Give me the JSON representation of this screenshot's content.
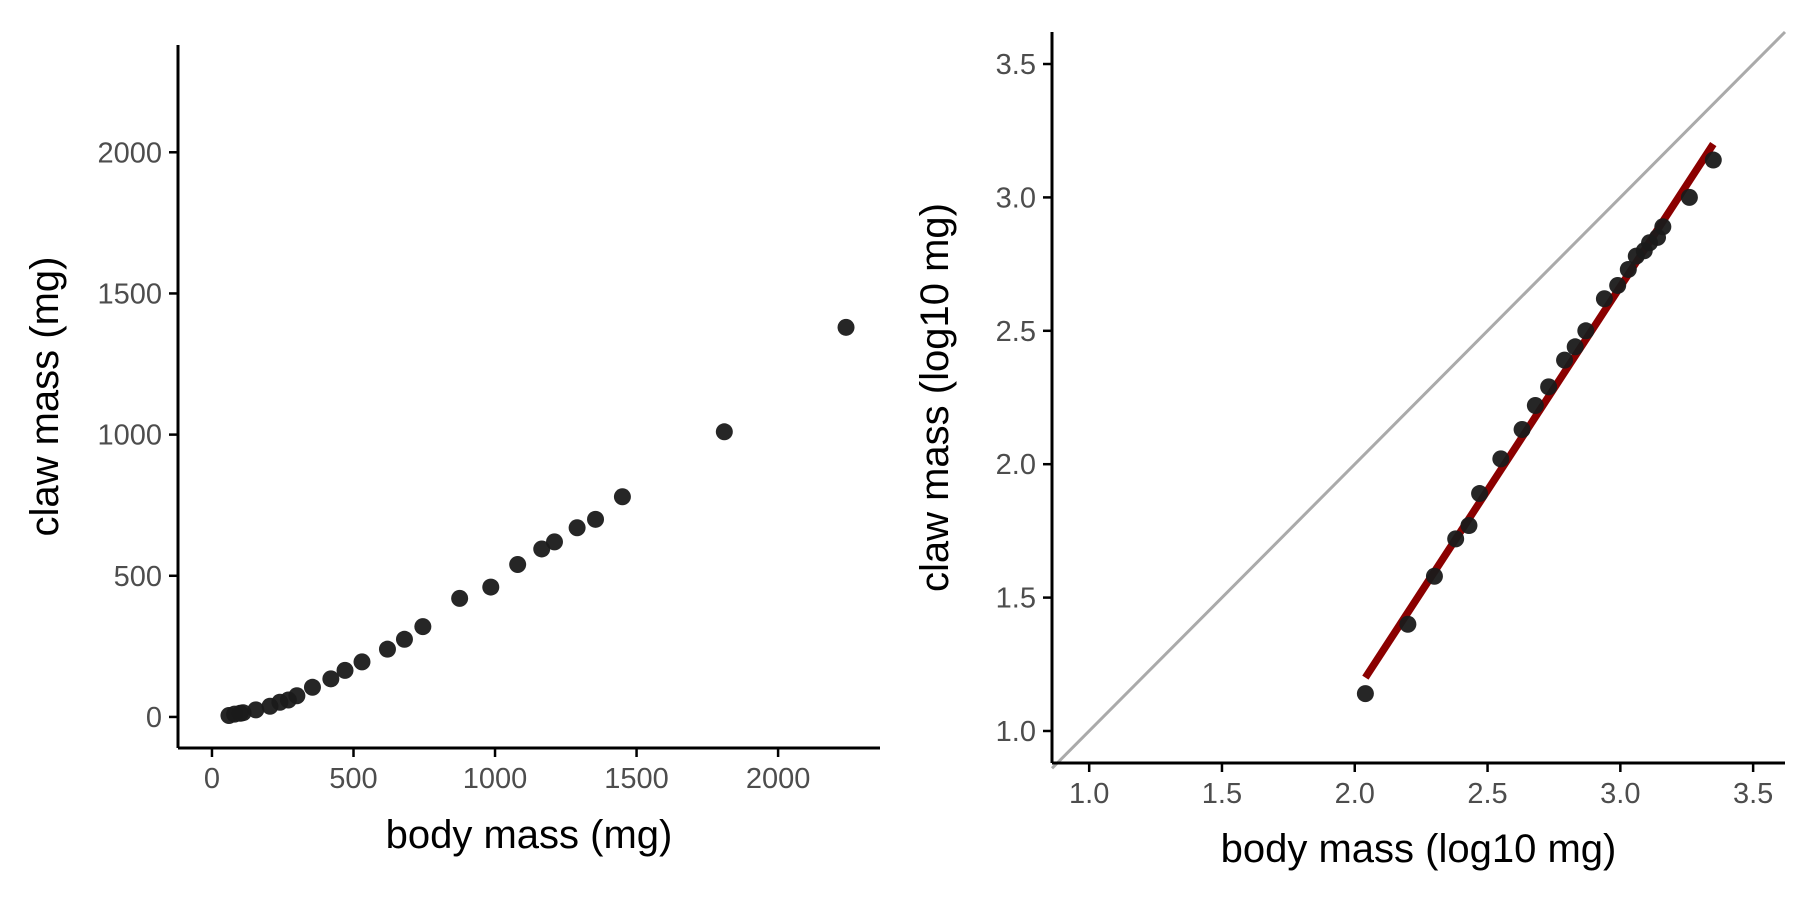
{
  "chart_data": [
    {
      "type": "scatter",
      "title": "",
      "xlabel": "body mass (mg)",
      "ylabel": "claw mass (mg)",
      "xlim": [
        -120,
        2360
      ],
      "ylim": [
        -110,
        2380
      ],
      "xticks": [
        0,
        500,
        1000,
        1500,
        2000
      ],
      "xtick_labels": [
        "0",
        "500",
        "1000",
        "1500",
        "2000"
      ],
      "yticks": [
        0,
        500,
        1000,
        1500,
        2000
      ],
      "ytick_labels": [
        "0",
        "500",
        "1000",
        "1500",
        "2000"
      ],
      "grid": false,
      "legend": "none",
      "colors": {
        "point": "#1a1a1a",
        "axis": "#000000"
      },
      "x": [
        60,
        80,
        100,
        110,
        155,
        205,
        240,
        270,
        300,
        355,
        420,
        470,
        530,
        620,
        680,
        745,
        875,
        985,
        1080,
        1165,
        1210,
        1290,
        1355,
        1450,
        1810,
        2240
      ],
      "y": [
        5,
        10,
        13,
        15,
        25,
        38,
        52,
        60,
        75,
        105,
        135,
        165,
        195,
        240,
        275,
        320,
        420,
        460,
        540,
        595,
        620,
        670,
        700,
        780,
        1010,
        1380
      ]
    },
    {
      "type": "scatter",
      "title": "",
      "xlabel": "body mass (log10 mg)",
      "ylabel": "claw mass (log10 mg)",
      "xlim": [
        0.86,
        3.62
      ],
      "ylim": [
        0.88,
        3.62
      ],
      "xticks": [
        1.0,
        1.5,
        2.0,
        2.5,
        3.0,
        3.5
      ],
      "xtick_labels": [
        "1.0",
        "1.5",
        "2.0",
        "2.5",
        "3.0",
        "3.5"
      ],
      "yticks": [
        1.0,
        1.5,
        2.0,
        2.5,
        3.0,
        3.5
      ],
      "ytick_labels": [
        "1.0",
        "1.5",
        "2.0",
        "2.5",
        "3.0",
        "3.5"
      ],
      "grid": false,
      "legend": "none",
      "colors": {
        "point": "#1a1a1a",
        "axis": "#000000",
        "identity_line": "#aaaaaa",
        "fit_line": "#8b0000"
      },
      "x": [
        2.04,
        2.2,
        2.3,
        2.38,
        2.43,
        2.47,
        2.55,
        2.63,
        2.68,
        2.73,
        2.79,
        2.83,
        2.87,
        2.94,
        2.99,
        3.03,
        3.06,
        3.09,
        3.11,
        3.14,
        3.16,
        3.26,
        3.35
      ],
      "y": [
        1.14,
        1.4,
        1.58,
        1.72,
        1.77,
        1.89,
        2.02,
        2.13,
        2.22,
        2.29,
        2.39,
        2.44,
        2.5,
        2.62,
        2.67,
        2.73,
        2.78,
        2.8,
        2.83,
        2.85,
        2.89,
        3.0,
        3.14
      ],
      "identity_line": {
        "x": [
          0.86,
          3.62
        ],
        "y": [
          0.86,
          3.62
        ]
      },
      "fit_line": {
        "x": [
          2.04,
          3.35
        ],
        "y": [
          1.2,
          3.2
        ]
      }
    }
  ]
}
